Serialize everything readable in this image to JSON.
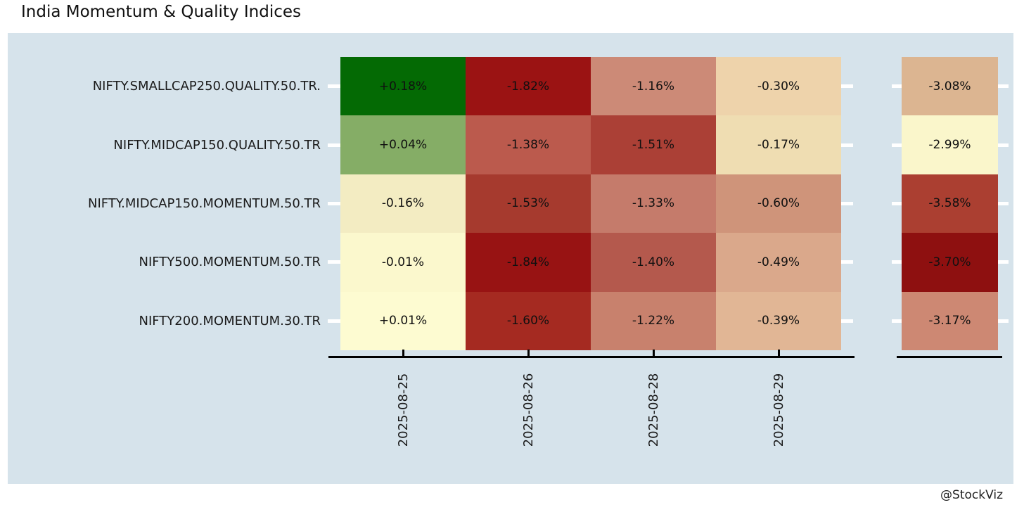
{
  "title": "India Momentum & Quality Indices",
  "watermark": "@StockViz",
  "colors": {
    "page_bg": "#ffffff",
    "panel_bg": "#d6e3eb",
    "axis": "#000000",
    "y_tick": "#ffffff",
    "cell_text": "#101010",
    "label_text": "#1a1a1a"
  },
  "chart_data": {
    "type": "heatmap",
    "title": "India Momentum & Quality Indices",
    "rows": [
      "NIFTY.SMALLCAP250.QUALITY.50.TR.",
      "NIFTY.MIDCAP150.QUALITY.50.TR",
      "NIFTY.MIDCAP150.MOMENTUM.50.TR",
      "NIFTY500.MOMENTUM.50.TR",
      "NIFTY200.MOMENTUM.30.TR"
    ],
    "columns": [
      "2025-08-25",
      "2025-08-26",
      "2025-08-28",
      "2025-08-29"
    ],
    "values": [
      [
        0.18,
        -1.82,
        -1.16,
        -0.3
      ],
      [
        0.04,
        -1.38,
        -1.51,
        -0.17
      ],
      [
        -0.16,
        -1.53,
        -1.33,
        -0.6
      ],
      [
        -0.01,
        -1.84,
        -1.4,
        -0.49
      ],
      [
        0.01,
        -1.6,
        -1.22,
        -0.39
      ]
    ],
    "value_labels": [
      [
        "+0.18%",
        "-1.82%",
        "-1.16%",
        "-0.30%"
      ],
      [
        "+0.04%",
        "-1.38%",
        "-1.51%",
        "-0.17%"
      ],
      [
        "-0.16%",
        "-1.53%",
        "-1.33%",
        "-0.60%"
      ],
      [
        "-0.01%",
        "-1.84%",
        "-1.40%",
        "-0.49%"
      ],
      [
        "+0.01%",
        "-1.60%",
        "-1.22%",
        "-0.39%"
      ]
    ],
    "totals": [
      -3.08,
      -2.99,
      -3.58,
      -3.7,
      -3.17
    ],
    "total_labels": [
      "-3.08%",
      "-2.99%",
      "-3.58%",
      "-3.70%",
      "-3.17%"
    ],
    "cell_colors": [
      [
        "#046a04",
        "#9b1313",
        "#cc8a77",
        "#eed3ab"
      ],
      [
        "#85ad66",
        "#bb5a4d",
        "#ab4036",
        "#efddb2"
      ],
      [
        "#f3ecc2",
        "#a63a2e",
        "#c57b6b",
        "#cf947a"
      ],
      [
        "#fbf8cd",
        "#981313",
        "#b4594d",
        "#daa88b"
      ],
      [
        "#fdfbd1",
        "#a52a21",
        "#c8816d",
        "#e1b695"
      ]
    ],
    "total_colors": [
      "#dcb591",
      "#faf6cb",
      "#ab3f31",
      "#8e1010",
      "#cd8873"
    ],
    "legend": "none",
    "grid": false,
    "colormap": "red-yellow-green diverging"
  }
}
